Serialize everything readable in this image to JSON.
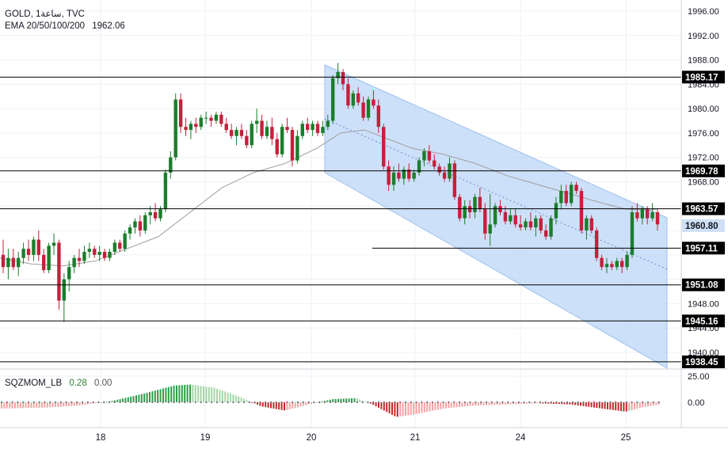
{
  "header": {
    "symbol_line": "GOLD, 1ساعة, TVC",
    "ema_label": "EMA 20/50/100/200",
    "ema_value": "1962.06"
  },
  "indicator": {
    "name": "SQZMOM_LB",
    "value1": "0.28",
    "value2": "0.00"
  },
  "colors": {
    "up": "#26a69a",
    "down": "#c2185b",
    "candle_up": "#1b7d2c",
    "candle_down": "#c4203c",
    "channel": "#bcd6f7",
    "ema": "#9e9e9e",
    "level_line": "#000000"
  },
  "chart_data": {
    "type": "candlestick",
    "price_axis": {
      "ticks": [
        "1996.00",
        "1992.00",
        "1988.00",
        "1984.00",
        "1980.00",
        "1976.00",
        "1972.00",
        "1968.00",
        "1948.00",
        "1944.00",
        "1940.00"
      ],
      "range": [
        1936,
        1998
      ]
    },
    "x_axis": {
      "ticks": [
        "18",
        "19",
        "20",
        "21",
        "24",
        "25"
      ]
    },
    "levels": [
      {
        "value": 1985.17,
        "label": "1985.17"
      },
      {
        "value": 1969.78,
        "label": "1969.78"
      },
      {
        "value": 1963.57,
        "label": "1963.57"
      },
      {
        "value": 1957.11,
        "label": "1957.11"
      },
      {
        "value": 1951.08,
        "label": "1951.08"
      },
      {
        "value": 1945.16,
        "label": "1945.16"
      },
      {
        "value": 1938.45,
        "label": "1938.45"
      }
    ],
    "current_price": {
      "value": 1960.8,
      "label": "1960.80"
    },
    "ema_line": [
      [
        0,
        1955.5
      ],
      [
        40,
        1954.5
      ],
      [
        80,
        1954.2
      ],
      [
        120,
        1955.0
      ],
      [
        160,
        1957.0
      ],
      [
        200,
        1959.0
      ],
      [
        240,
        1963.0
      ],
      [
        280,
        1967.0
      ],
      [
        320,
        1969.5
      ],
      [
        360,
        1971.0
      ],
      [
        400,
        1973.5
      ],
      [
        430,
        1976.0
      ],
      [
        460,
        1976.5
      ],
      [
        490,
        1975.0
      ],
      [
        520,
        1973.5
      ],
      [
        560,
        1972.5
      ],
      [
        600,
        1971.0
      ],
      [
        640,
        1969.0
      ],
      [
        680,
        1967.5
      ],
      [
        720,
        1966.0
      ],
      [
        760,
        1964.5
      ],
      [
        790,
        1963.5
      ],
      [
        820,
        1963.3
      ],
      [
        832,
        1963.6
      ]
    ],
    "indicator_ticks": [
      "25.00",
      "0.00"
    ],
    "indicator_range": [
      -30,
      40
    ],
    "momentum": {
      "x_start": 2,
      "x_end": 832,
      "points": [
        [
          0,
          -6
        ],
        [
          60,
          -5
        ],
        [
          100,
          -3
        ],
        [
          140,
          1
        ],
        [
          180,
          8
        ],
        [
          220,
          16
        ],
        [
          240,
          17
        ],
        [
          270,
          14
        ],
        [
          300,
          6
        ],
        [
          330,
          -4
        ],
        [
          360,
          -8
        ],
        [
          390,
          -2
        ],
        [
          420,
          3
        ],
        [
          450,
          4
        ],
        [
          470,
          -2
        ],
        [
          500,
          -14
        ],
        [
          520,
          -12
        ],
        [
          560,
          -6
        ],
        [
          600,
          -3
        ],
        [
          640,
          -2
        ],
        [
          680,
          -1
        ],
        [
          720,
          -2
        ],
        [
          760,
          -6
        ],
        [
          790,
          -9
        ],
        [
          810,
          -5
        ],
        [
          832,
          -2
        ]
      ]
    },
    "candles": [
      [
        1956.0,
        1958.5,
        1953.0,
        1954.0
      ],
      [
        1954.0,
        1957.0,
        1952.0,
        1955.5
      ],
      [
        1955.5,
        1957.0,
        1953.5,
        1954.0
      ],
      [
        1954.0,
        1956.5,
        1952.5,
        1955.5
      ],
      [
        1955.5,
        1958.0,
        1954.5,
        1957.0
      ],
      [
        1957.0,
        1958.5,
        1955.0,
        1956.0
      ],
      [
        1956.0,
        1959.0,
        1955.0,
        1958.5
      ],
      [
        1958.5,
        1960.0,
        1955.0,
        1956.0
      ],
      [
        1956.0,
        1957.0,
        1953.0,
        1953.5
      ],
      [
        1953.5,
        1958.0,
        1953.0,
        1957.5
      ],
      [
        1957.5,
        1959.5,
        1956.0,
        1958.0
      ],
      [
        1958.0,
        1958.5,
        1947.0,
        1948.5
      ],
      [
        1948.5,
        1953.0,
        1945.0,
        1952.0
      ],
      [
        1952.0,
        1955.0,
        1950.0,
        1954.0
      ],
      [
        1954.0,
        1956.0,
        1953.0,
        1955.5
      ],
      [
        1955.5,
        1957.0,
        1954.0,
        1955.0
      ],
      [
        1955.0,
        1957.5,
        1954.5,
        1956.5
      ],
      [
        1956.5,
        1958.0,
        1955.5,
        1957.0
      ],
      [
        1957.0,
        1957.5,
        1955.5,
        1956.0
      ],
      [
        1956.0,
        1957.5,
        1955.0,
        1956.5
      ],
      [
        1956.5,
        1957.0,
        1955.0,
        1955.5
      ],
      [
        1955.5,
        1957.0,
        1955.0,
        1956.5
      ],
      [
        1956.5,
        1958.5,
        1956.0,
        1958.0
      ],
      [
        1958.0,
        1958.5,
        1956.5,
        1957.0
      ],
      [
        1957.0,
        1960.0,
        1956.5,
        1959.5
      ],
      [
        1959.5,
        1961.0,
        1958.5,
        1960.5
      ],
      [
        1960.5,
        1962.0,
        1959.5,
        1961.5
      ],
      [
        1961.5,
        1962.5,
        1959.0,
        1960.0
      ],
      [
        1960.0,
        1963.0,
        1959.5,
        1962.5
      ],
      [
        1962.5,
        1964.0,
        1961.0,
        1963.0
      ],
      [
        1963.0,
        1964.5,
        1961.5,
        1962.0
      ],
      [
        1962.0,
        1964.0,
        1961.5,
        1963.5
      ],
      [
        1963.5,
        1970.0,
        1963.0,
        1969.5
      ],
      [
        1969.5,
        1973.0,
        1968.5,
        1972.0
      ],
      [
        1972.0,
        1982.5,
        1971.5,
        1981.5
      ],
      [
        1981.5,
        1982.5,
        1976.0,
        1977.0
      ],
      [
        1977.0,
        1978.5,
        1975.5,
        1976.5
      ],
      [
        1976.5,
        1978.0,
        1975.0,
        1977.5
      ],
      [
        1977.5,
        1978.5,
        1976.0,
        1977.0
      ],
      [
        1977.0,
        1979.0,
        1976.5,
        1978.5
      ],
      [
        1978.5,
        1979.5,
        1977.5,
        1978.5
      ],
      [
        1978.5,
        1979.0,
        1977.0,
        1978.0
      ],
      [
        1978.0,
        1979.5,
        1977.5,
        1979.0
      ],
      [
        1979.0,
        1979.5,
        1977.0,
        1977.5
      ],
      [
        1977.5,
        1978.5,
        1976.0,
        1976.5
      ],
      [
        1976.5,
        1977.5,
        1975.0,
        1975.5
      ],
      [
        1975.5,
        1977.0,
        1974.0,
        1976.5
      ],
      [
        1976.5,
        1977.5,
        1975.0,
        1975.5
      ],
      [
        1975.5,
        1976.5,
        1973.5,
        1974.0
      ],
      [
        1974.0,
        1978.0,
        1973.5,
        1977.5
      ],
      [
        1977.5,
        1980.0,
        1976.0,
        1978.0
      ],
      [
        1978.0,
        1979.0,
        1975.0,
        1975.5
      ],
      [
        1975.5,
        1978.0,
        1975.0,
        1977.0
      ],
      [
        1977.0,
        1978.5,
        1974.0,
        1975.0
      ],
      [
        1975.0,
        1976.0,
        1972.0,
        1972.5
      ],
      [
        1972.5,
        1977.5,
        1972.0,
        1977.0
      ],
      [
        1977.0,
        1978.5,
        1976.0,
        1976.5
      ],
      [
        1976.5,
        1977.0,
        1970.5,
        1971.5
      ],
      [
        1971.5,
        1976.5,
        1971.0,
        1975.5
      ],
      [
        1975.5,
        1978.0,
        1975.0,
        1977.5
      ],
      [
        1977.5,
        1978.5,
        1976.0,
        1976.5
      ],
      [
        1976.5,
        1978.0,
        1975.5,
        1977.5
      ],
      [
        1977.5,
        1978.0,
        1975.5,
        1976.0
      ],
      [
        1976.0,
        1978.0,
        1975.5,
        1977.0
      ],
      [
        1977.0,
        1979.0,
        1976.5,
        1978.0
      ],
      [
        1978.0,
        1985.5,
        1977.5,
        1985.0
      ],
      [
        1985.0,
        1987.5,
        1984.0,
        1986.0
      ],
      [
        1986.0,
        1986.5,
        1983.0,
        1984.0
      ],
      [
        1984.0,
        1985.0,
        1980.0,
        1980.5
      ],
      [
        1980.5,
        1983.0,
        1980.0,
        1982.5
      ],
      [
        1982.5,
        1983.5,
        1980.5,
        1981.0
      ],
      [
        1981.0,
        1982.0,
        1978.0,
        1978.5
      ],
      [
        1978.5,
        1982.0,
        1978.0,
        1981.5
      ],
      [
        1981.5,
        1983.0,
        1980.0,
        1980.5
      ],
      [
        1980.5,
        1981.5,
        1976.0,
        1977.0
      ],
      [
        1977.0,
        1977.5,
        1970.0,
        1970.5
      ],
      [
        1970.5,
        1971.5,
        1966.5,
        1967.5
      ],
      [
        1967.5,
        1970.5,
        1966.5,
        1969.5
      ],
      [
        1969.5,
        1971.0,
        1968.0,
        1968.5
      ],
      [
        1968.5,
        1970.5,
        1967.5,
        1970.0
      ],
      [
        1970.0,
        1971.0,
        1968.0,
        1968.5
      ],
      [
        1968.5,
        1970.0,
        1968.0,
        1969.5
      ],
      [
        1969.5,
        1972.0,
        1969.0,
        1971.5
      ],
      [
        1971.5,
        1973.5,
        1970.5,
        1973.0
      ],
      [
        1973.0,
        1974.0,
        1971.0,
        1971.5
      ],
      [
        1971.5,
        1972.5,
        1970.0,
        1970.5
      ],
      [
        1970.5,
        1971.0,
        1969.0,
        1969.5
      ],
      [
        1969.5,
        1970.5,
        1968.0,
        1968.5
      ],
      [
        1968.5,
        1972.0,
        1968.0,
        1971.0
      ],
      [
        1971.0,
        1971.5,
        1965.0,
        1965.5
      ],
      [
        1965.5,
        1966.0,
        1961.5,
        1962.0
      ],
      [
        1962.0,
        1965.0,
        1961.0,
        1964.0
      ],
      [
        1964.0,
        1965.0,
        1962.0,
        1963.0
      ],
      [
        1963.0,
        1966.0,
        1962.0,
        1965.5
      ],
      [
        1965.5,
        1967.0,
        1963.0,
        1963.5
      ],
      [
        1963.5,
        1964.5,
        1958.5,
        1959.5
      ],
      [
        1959.5,
        1966.0,
        1957.5,
        1961.0
      ],
      [
        1961.0,
        1964.5,
        1960.5,
        1964.0
      ],
      [
        1964.0,
        1965.0,
        1962.5,
        1963.0
      ],
      [
        1963.0,
        1964.0,
        1961.0,
        1961.5
      ],
      [
        1961.5,
        1963.5,
        1961.0,
        1962.5
      ],
      [
        1962.5,
        1963.5,
        1960.5,
        1961.0
      ],
      [
        1961.0,
        1962.5,
        1960.0,
        1960.5
      ],
      [
        1960.5,
        1962.0,
        1960.0,
        1961.5
      ],
      [
        1961.5,
        1963.0,
        1960.0,
        1960.5
      ],
      [
        1960.5,
        1962.5,
        1959.0,
        1962.0
      ],
      [
        1962.0,
        1962.5,
        1959.5,
        1960.0
      ],
      [
        1960.0,
        1961.0,
        1958.5,
        1959.0
      ],
      [
        1959.0,
        1962.5,
        1958.5,
        1962.0
      ],
      [
        1962.0,
        1965.5,
        1961.0,
        1964.5
      ],
      [
        1964.5,
        1967.5,
        1963.5,
        1966.5
      ],
      [
        1966.5,
        1967.5,
        1964.0,
        1964.5
      ],
      [
        1964.5,
        1968.0,
        1964.0,
        1967.5
      ],
      [
        1967.5,
        1968.0,
        1966.0,
        1966.5
      ],
      [
        1966.5,
        1967.0,
        1959.5,
        1960.0
      ],
      [
        1960.0,
        1962.5,
        1958.5,
        1962.0
      ],
      [
        1962.0,
        1962.5,
        1959.5,
        1960.0
      ],
      [
        1960.0,
        1960.5,
        1955.0,
        1955.5
      ],
      [
        1955.5,
        1956.0,
        1953.5,
        1954.0
      ],
      [
        1954.0,
        1955.5,
        1953.0,
        1954.5
      ],
      [
        1954.5,
        1955.0,
        1953.5,
        1954.0
      ],
      [
        1954.0,
        1955.5,
        1953.5,
        1955.0
      ],
      [
        1955.0,
        1955.5,
        1953.0,
        1954.0
      ],
      [
        1954.0,
        1956.5,
        1953.5,
        1956.0
      ],
      [
        1956.0,
        1964.0,
        1955.5,
        1963.0
      ],
      [
        1963.0,
        1964.5,
        1961.5,
        1962.0
      ],
      [
        1962.0,
        1964.0,
        1961.0,
        1963.5
      ],
      [
        1963.5,
        1964.0,
        1961.0,
        1962.0
      ],
      [
        1962.0,
        1964.5,
        1961.5,
        1963.0
      ],
      [
        1963.0,
        1963.5,
        1960.0,
        1961.0
      ]
    ]
  }
}
